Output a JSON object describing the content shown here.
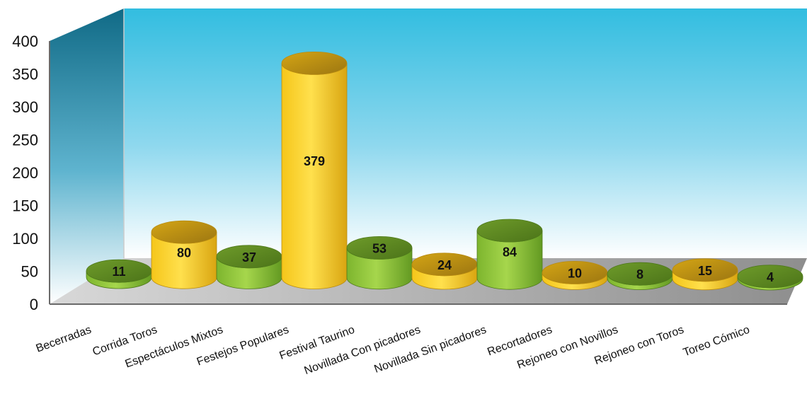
{
  "chart_data": {
    "type": "bar",
    "title": "",
    "xlabel": "",
    "ylabel": "",
    "ylim": [
      0,
      400
    ],
    "yticks": [
      0,
      50,
      100,
      150,
      200,
      250,
      300,
      350,
      400
    ],
    "grid": false,
    "legend": "none",
    "categories": [
      "Becerradas",
      "Corrida Toros",
      "Espectáculos Mixtos",
      "Festejos Populares",
      "Festival Taurino",
      "Novillada Con picadores",
      "Novillada Sin picadores",
      "Recortadores",
      "Rejoneo con Novillos",
      "Rejoneo con Toros",
      "Toreo Cómico"
    ],
    "values": [
      11,
      80,
      37,
      379,
      53,
      24,
      84,
      10,
      8,
      15,
      4
    ],
    "data_labels": [
      "11",
      "80",
      "37",
      "379",
      "53",
      "24",
      "84",
      "10",
      "8",
      "15",
      "4"
    ],
    "colors": {
      "yellow": "#f2c51c",
      "green": "#8cc23a",
      "back_wall_top": "#35bfe0",
      "side_wall": "#147896",
      "floor": "#a9a9a9"
    }
  }
}
